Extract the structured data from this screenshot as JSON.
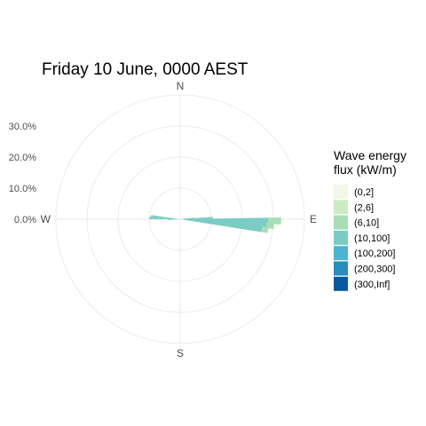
{
  "chart_data": {
    "type": "wind-rose",
    "title": "Friday 10 June, 0000 AEST",
    "radial_ticks": [
      0,
      10,
      20,
      30
    ],
    "radial_tick_labels": [
      "0.0%",
      "10.0%",
      "20.0%",
      "30.0%"
    ],
    "rmax": 40,
    "direction_labels": [
      "N",
      "E",
      "S",
      "W"
    ],
    "grid": true,
    "legend": {
      "title": [
        "Wave energy",
        "flux (kW/m)"
      ],
      "position": "right",
      "categories": [
        "(0,2]",
        "(2,6]",
        "(6,10]",
        "(10,100]",
        "(100,200]",
        "(200,300]",
        "(300,Inf]"
      ],
      "colors": [
        "#f0f9e8",
        "#ccebc5",
        "#a8ddb5",
        "#7bccc4",
        "#4eb3d3",
        "#2b8cbe",
        "#08589e"
      ]
    },
    "sector_width_deg": 4,
    "sectors": [
      {
        "direction_deg": 91,
        "segments": [
          {
            "category": "(10,100]",
            "percent": 28.3
          },
          {
            "category": "(6,10]",
            "percent": 4.2
          }
        ]
      },
      {
        "direction_deg": 94,
        "segments": [
          {
            "category": "(10,100]",
            "percent": 27.8
          },
          {
            "category": "(6,10]",
            "percent": 2.5
          }
        ]
      },
      {
        "direction_deg": 97,
        "segments": [
          {
            "category": "(10,100]",
            "percent": 26.5
          },
          {
            "category": "(6,10]",
            "percent": 2.0
          }
        ]
      },
      {
        "direction_deg": 88,
        "segments": [
          {
            "category": "(10,100]",
            "percent": 10.5
          }
        ]
      },
      {
        "direction_deg": 85,
        "segments": [
          {
            "category": "(10,100]",
            "percent": 4.5
          }
        ]
      },
      {
        "direction_deg": 272,
        "segments": [
          {
            "category": "(10,100]",
            "percent": 10.0
          }
        ]
      },
      {
        "direction_deg": 276,
        "segments": [
          {
            "category": "(10,100]",
            "percent": 9.5
          }
        ]
      },
      {
        "direction_deg": 268,
        "segments": [
          {
            "category": "(10,100]",
            "percent": 4.0
          }
        ]
      }
    ]
  }
}
